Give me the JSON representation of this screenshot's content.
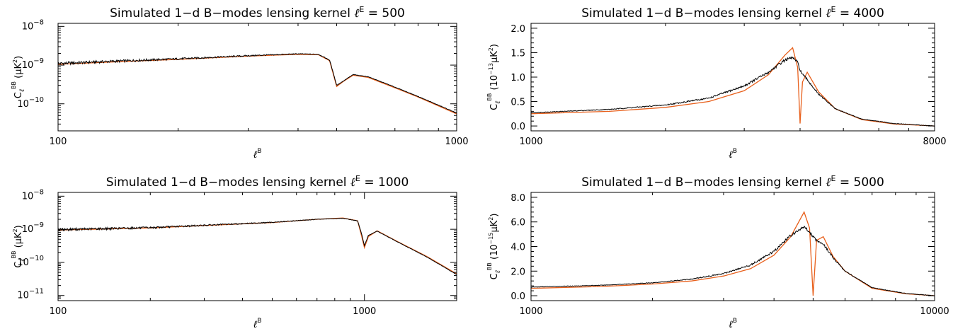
{
  "colors": {
    "simulated": "#000000",
    "theory": "#e8601c",
    "axes": "#000000"
  },
  "chart_data": [
    {
      "type": "line",
      "title": "Simulated 1−d B−modes lensing kernel ℓ E = 500",
      "title_parts": [
        "Simulated 1−d B−modes lensing kernel ",
        "ℓ",
        "E",
        " = 500"
      ],
      "ylabel_parts": [
        "C",
        "ℓ",
        "BB",
        "(μK",
        "2",
        ")"
      ],
      "xlabel_parts": [
        "ℓ",
        "B"
      ],
      "xscale": "log",
      "yscale": "log",
      "xlim": [
        100,
        1000
      ],
      "ylim": [
        2e-11,
        1.2e-08
      ],
      "xticks": [
        100,
        1000
      ],
      "xtick_labels": [
        "100",
        "1000"
      ],
      "yticks": [
        1e-10,
        1e-09,
        1e-08
      ],
      "ytick_labels": [
        "10",
        "10",
        "10"
      ],
      "ytick_exps": [
        "−10",
        "−9",
        "−8"
      ],
      "ell_E": 500,
      "series": [
        {
          "role": "theory",
          "x": [
            100,
            150,
            200,
            300,
            400,
            450,
            480,
            500,
            520,
            550,
            600,
            700,
            800,
            1000
          ],
          "y": [
            1.05e-09,
            1.25e-09,
            1.4e-09,
            1.7e-09,
            1.9e-09,
            1.85e-09,
            1.3e-09,
            2.8e-10,
            3.8e-10,
            5.5e-10,
            4.8e-10,
            2.6e-10,
            1.5e-10,
            5.5e-11
          ]
        },
        {
          "role": "simulated",
          "x": [
            100,
            150,
            200,
            300,
            400,
            450,
            480,
            500,
            520,
            550,
            600,
            700,
            800,
            1000
          ],
          "y": [
            1.1e-09,
            1.3e-09,
            1.45e-09,
            1.75e-09,
            1.95e-09,
            1.9e-09,
            1.35e-09,
            3e-10,
            3.9e-10,
            5.7e-10,
            5e-10,
            2.7e-10,
            1.55e-10,
            5.8e-11
          ]
        }
      ]
    },
    {
      "type": "line",
      "title": "Simulated 1−d B−modes lensing kernel ℓ E = 4000",
      "title_parts": [
        "Simulated 1−d B−modes lensing kernel ",
        "ℓ",
        "E",
        " = 4000"
      ],
      "ylabel_parts": [
        "C",
        "ℓ",
        "BB",
        "(10",
        "−13",
        "μK",
        "2",
        ")"
      ],
      "xlabel_parts": [
        "ℓ",
        "B"
      ],
      "xscale": "log",
      "yscale": "linear",
      "xlim": [
        1000,
        8000
      ],
      "ylim": [
        -0.1,
        2.1
      ],
      "xticks": [
        1000,
        8000
      ],
      "xtick_labels": [
        "1000",
        "8000"
      ],
      "yticks": [
        0,
        0.5,
        1.0,
        1.5,
        2.0
      ],
      "ytick_labels": [
        "0.0",
        "0.5",
        "1.0",
        "1.5",
        "2.0"
      ],
      "ell_E": 4000,
      "series": [
        {
          "role": "theory",
          "x": [
            1000,
            1500,
            2000,
            2500,
            3000,
            3400,
            3700,
            3850,
            3950,
            4000,
            4050,
            4150,
            4400,
            4800,
            5500,
            6500,
            8000
          ],
          "y": [
            0.25,
            0.3,
            0.38,
            0.5,
            0.72,
            1.05,
            1.45,
            1.6,
            1.2,
            0.05,
            0.9,
            1.1,
            0.7,
            0.35,
            0.13,
            0.04,
            0.0
          ]
        },
        {
          "role": "simulated",
          "x": [
            1000,
            1500,
            2000,
            2500,
            3000,
            3400,
            3700,
            3850,
            3950,
            4000,
            4050,
            4150,
            4400,
            4800,
            5500,
            6500,
            8000
          ],
          "y": [
            0.27,
            0.34,
            0.43,
            0.57,
            0.82,
            1.1,
            1.35,
            1.4,
            1.3,
            1.15,
            1.05,
            0.95,
            0.65,
            0.35,
            0.14,
            0.05,
            0.0
          ]
        }
      ]
    },
    {
      "type": "line",
      "title": "Simulated 1−d B−modes lensing kernel ℓ E = 1000",
      "title_parts": [
        "Simulated 1−d B−modes lensing kernel ",
        "ℓ",
        "E",
        " = 1000"
      ],
      "ylabel_parts": [
        "C",
        "ℓ",
        "BB",
        "(μK",
        "2",
        ")"
      ],
      "xlabel_parts": [
        "ℓ",
        "B"
      ],
      "xscale": "log",
      "yscale": "log",
      "xlim": [
        100,
        2000
      ],
      "ylim": [
        7e-12,
        1.3e-08
      ],
      "xticks": [
        100,
        1000
      ],
      "xtick_labels": [
        "100",
        "1000"
      ],
      "yticks": [
        1e-11,
        1e-10,
        1e-09,
        1e-08
      ],
      "ytick_labels": [
        "10",
        "10",
        "10",
        "10"
      ],
      "ytick_exps": [
        "−11",
        "−10",
        "−9",
        "−8"
      ],
      "ell_E": 1000,
      "series": [
        {
          "role": "theory",
          "x": [
            100,
            200,
            300,
            500,
            700,
            850,
            950,
            980,
            1000,
            1030,
            1100,
            1300,
            1600,
            2000
          ],
          "y": [
            9.5e-10,
            1.1e-09,
            1.3e-09,
            1.6e-09,
            2e-09,
            2.2e-09,
            1.8e-09,
            6e-10,
            2.8e-10,
            6e-10,
            9e-10,
            4e-10,
            1.5e-10,
            4.5e-11
          ]
        },
        {
          "role": "simulated",
          "x": [
            100,
            200,
            300,
            500,
            700,
            850,
            950,
            980,
            1000,
            1030,
            1100,
            1300,
            1600,
            2000
          ],
          "y": [
            9.8e-10,
            1.12e-09,
            1.32e-09,
            1.62e-09,
            2e-09,
            2.15e-09,
            1.8e-09,
            7e-10,
            3.2e-10,
            6.5e-10,
            8.8e-10,
            3.9e-10,
            1.45e-10,
            4.3e-11
          ]
        }
      ]
    },
    {
      "type": "line",
      "title": "Simulated 1−d B−modes lensing kernel ℓ E = 5000",
      "title_parts": [
        "Simulated 1−d B−modes lensing kernel ",
        "ℓ",
        "E",
        " = 5000"
      ],
      "ylabel_parts": [
        "C",
        "ℓ",
        "BB",
        "(10",
        "−15",
        "μK",
        "2",
        ")"
      ],
      "xlabel_parts": [
        "ℓ",
        "B"
      ],
      "xscale": "log",
      "yscale": "linear",
      "xlim": [
        1000,
        10000
      ],
      "ylim": [
        -0.4,
        8.4
      ],
      "xticks": [
        1000,
        10000
      ],
      "xtick_labels": [
        "1000",
        "10000"
      ],
      "yticks": [
        0,
        2,
        4,
        6,
        8
      ],
      "ytick_labels": [
        "0.0",
        "2.0",
        "4.0",
        "6.0",
        "8.0"
      ],
      "ell_E": 5000,
      "series": [
        {
          "role": "theory",
          "x": [
            1000,
            1500,
            2000,
            2500,
            3000,
            3500,
            4000,
            4400,
            4750,
            4900,
            5000,
            5100,
            5300,
            5600,
            6000,
            7000,
            8500,
            10000
          ],
          "y": [
            0.6,
            0.75,
            0.95,
            1.2,
            1.6,
            2.2,
            3.3,
            4.8,
            6.8,
            5.5,
            0.0,
            4.5,
            4.8,
            3.2,
            2.0,
            0.6,
            0.15,
            0.0
          ]
        },
        {
          "role": "simulated",
          "x": [
            1000,
            1500,
            2000,
            2500,
            3000,
            3500,
            4000,
            4400,
            4750,
            4900,
            5000,
            5100,
            5300,
            5600,
            6000,
            7000,
            8500,
            10000
          ],
          "y": [
            0.7,
            0.85,
            1.05,
            1.35,
            1.8,
            2.5,
            3.6,
            4.9,
            5.6,
            5.2,
            4.8,
            4.5,
            4.2,
            3.1,
            2.0,
            0.65,
            0.18,
            0.0
          ]
        }
      ]
    }
  ]
}
